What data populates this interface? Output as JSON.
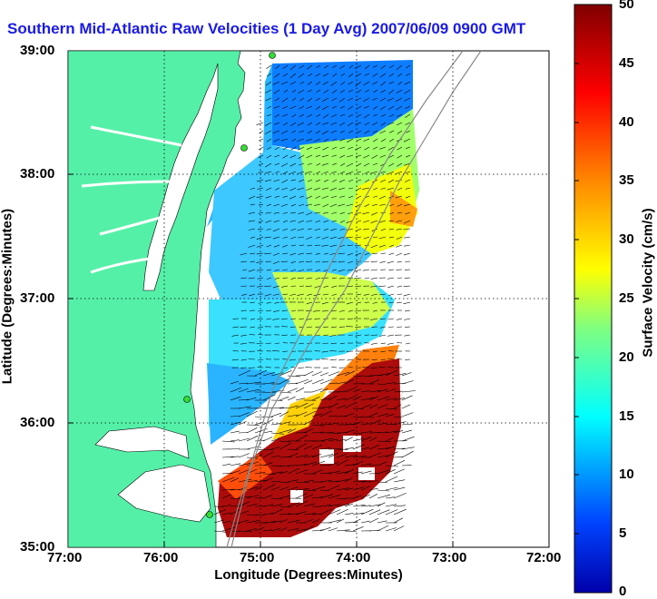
{
  "title": "Southern Mid-Atlantic Raw Velocities (1 Day Avg) 2007/06/09 0900 GMT",
  "xlabel": "Longitude (Degrees:Minutes)",
  "ylabel": "Latitude (Degrees:Minutes)",
  "xticks": [
    "77:00",
    "76:00",
    "75:00",
    "74:00",
    "73:00",
    "72:00"
  ],
  "yticks": [
    "39:00",
    "38:00",
    "37:00",
    "36:00",
    "35:00"
  ],
  "colorbar": {
    "label": "Surface Velocity (cm/s)",
    "ticks": [
      "0",
      "5",
      "10",
      "15",
      "20",
      "25",
      "30",
      "35",
      "40",
      "45",
      "50"
    ],
    "min": 0,
    "max": 50
  },
  "colors": {
    "land": "#55f0a8",
    "title": "#1a1ae6",
    "grid": "#000000",
    "station": "#33dd33"
  }
}
